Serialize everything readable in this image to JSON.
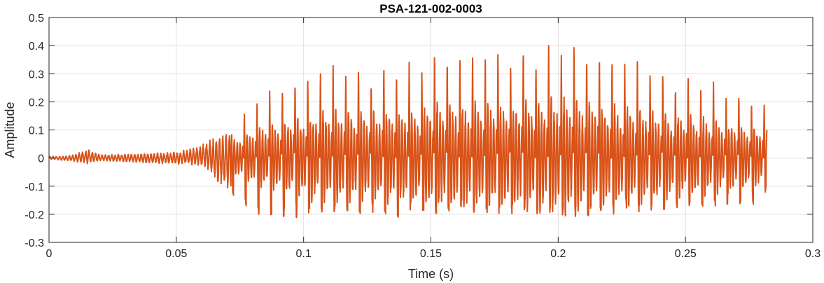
{
  "chart_data": {
    "type": "line",
    "title": "PSA-121-002-0003",
    "xlabel": "Time (s)",
    "ylabel": "Amplitude",
    "xlim": [
      0,
      0.3
    ],
    "ylim": [
      -0.3,
      0.5
    ],
    "xticks": [
      0,
      0.05,
      0.1,
      0.15,
      0.2,
      0.25,
      0.3
    ],
    "xtick_labels": [
      "0",
      "0.05",
      "0.1",
      "0.15",
      "0.2",
      "0.25",
      "0.3"
    ],
    "yticks": [
      -0.3,
      -0.2,
      -0.1,
      0,
      0.1,
      0.2,
      0.3,
      0.4,
      0.5
    ],
    "ytick_labels": [
      "-0.3",
      "-0.2",
      "-0.1",
      "0",
      "0.1",
      "0.2",
      "0.3",
      "0.4",
      "0.5"
    ],
    "grid": true,
    "line_color": "#d95319",
    "series": [
      {
        "envelope": [
          {
            "t": 0.0,
            "min": -0.004,
            "max": 0.006
          },
          {
            "t": 0.005,
            "min": -0.008,
            "max": 0.006
          },
          {
            "t": 0.01,
            "min": -0.012,
            "max": 0.012
          },
          {
            "t": 0.015,
            "min": -0.02,
            "max": 0.032
          },
          {
            "t": 0.02,
            "min": -0.01,
            "max": 0.012
          },
          {
            "t": 0.03,
            "min": -0.014,
            "max": 0.014
          },
          {
            "t": 0.04,
            "min": -0.02,
            "max": 0.018
          },
          {
            "t": 0.05,
            "min": -0.022,
            "max": 0.022
          },
          {
            "t": 0.058,
            "min": -0.03,
            "max": 0.04
          },
          {
            "t": 0.062,
            "min": -0.04,
            "max": 0.06
          },
          {
            "t": 0.066,
            "min": -0.09,
            "max": 0.08
          },
          {
            "t": 0.07,
            "min": -0.11,
            "max": 0.1
          },
          {
            "t": 0.074,
            "min": -0.15,
            "max": 0.14
          },
          {
            "t": 0.078,
            "min": -0.18,
            "max": 0.18
          },
          {
            "t": 0.082,
            "min": -0.2,
            "max": 0.23
          },
          {
            "t": 0.087,
            "min": -0.21,
            "max": 0.25
          },
          {
            "t": 0.092,
            "min": -0.225,
            "max": 0.275
          },
          {
            "t": 0.098,
            "min": -0.21,
            "max": 0.3
          },
          {
            "t": 0.105,
            "min": -0.2,
            "max": 0.34
          },
          {
            "t": 0.115,
            "min": -0.19,
            "max": 0.34
          },
          {
            "t": 0.125,
            "min": -0.2,
            "max": 0.33
          },
          {
            "t": 0.135,
            "min": -0.22,
            "max": 0.35
          },
          {
            "t": 0.145,
            "min": -0.19,
            "max": 0.34
          },
          {
            "t": 0.15,
            "min": -0.2,
            "max": 0.4
          },
          {
            "t": 0.16,
            "min": -0.19,
            "max": 0.4
          },
          {
            "t": 0.17,
            "min": -0.2,
            "max": 0.38
          },
          {
            "t": 0.18,
            "min": -0.2,
            "max": 0.4
          },
          {
            "t": 0.187,
            "min": -0.2,
            "max": 0.415
          },
          {
            "t": 0.195,
            "min": -0.21,
            "max": 0.41
          },
          {
            "t": 0.2,
            "min": -0.2,
            "max": 0.43
          },
          {
            "t": 0.206,
            "min": -0.235,
            "max": 0.42
          },
          {
            "t": 0.215,
            "min": -0.2,
            "max": 0.4
          },
          {
            "t": 0.225,
            "min": -0.2,
            "max": 0.37
          },
          {
            "t": 0.235,
            "min": -0.19,
            "max": 0.35
          },
          {
            "t": 0.245,
            "min": -0.18,
            "max": 0.31
          },
          {
            "t": 0.255,
            "min": -0.18,
            "max": 0.3
          },
          {
            "t": 0.265,
            "min": -0.17,
            "max": 0.26
          },
          {
            "t": 0.275,
            "min": -0.17,
            "max": 0.23
          },
          {
            "t": 0.28,
            "min": -0.17,
            "max": 0.22
          },
          {
            "t": 0.282,
            "min": -0.1,
            "max": 0.2
          }
        ],
        "periodic_peaks": {
          "start": 0.0715,
          "end": 0.2825,
          "period": 0.00498
        }
      }
    ]
  }
}
